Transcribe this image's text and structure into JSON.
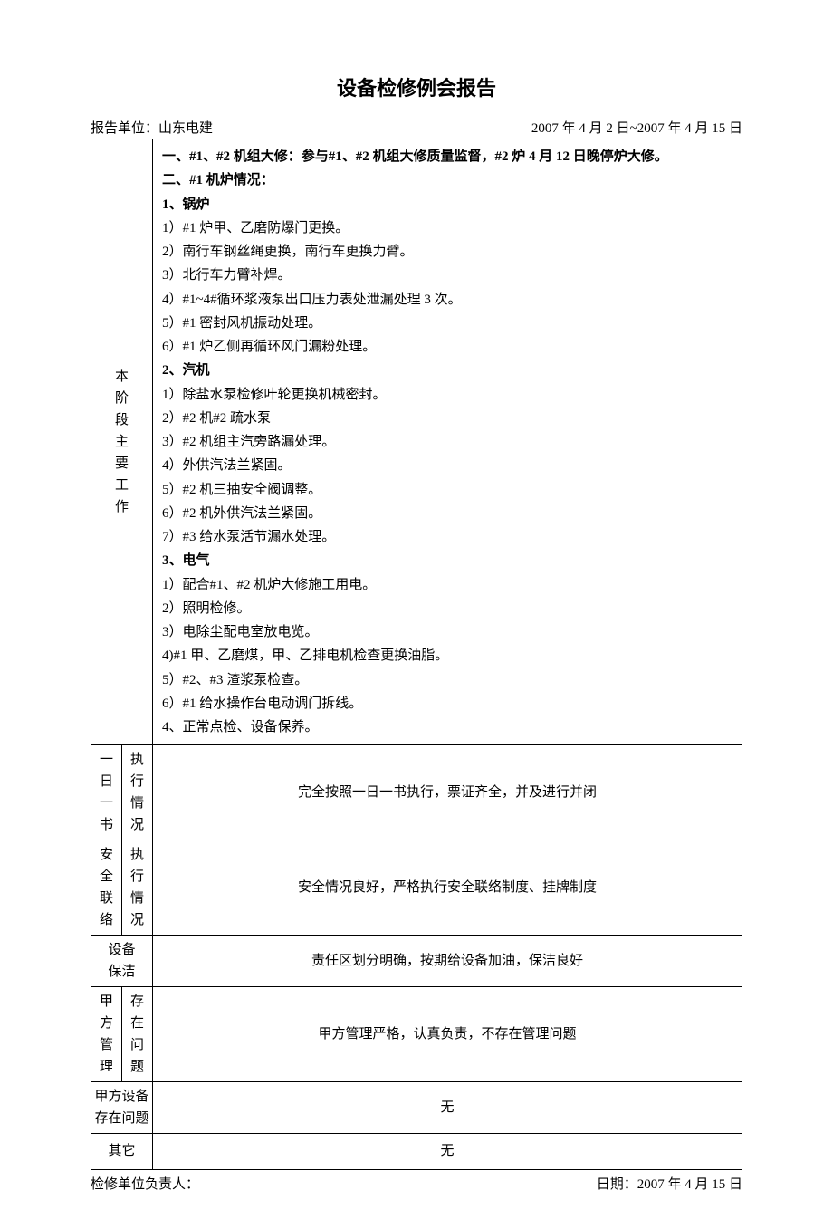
{
  "title": "设备检修例会报告",
  "header": {
    "unit_label": "报告单位：",
    "unit": "山东电建",
    "date_range": "2007 年 4 月 2 日~2007 年 4 月 15 日"
  },
  "main": {
    "row_label": "本阶段主要工作",
    "line1_bold": "一、#1、#2 机组大修：参与#1、#2 机组大修质量监督，#2 炉 4 月 12 日晚停炉大修。",
    "line2_bold": "二、#1 机炉情况：",
    "s1_head": "1、锅炉",
    "s1_1": "1）#1 炉甲、乙磨防爆门更换。",
    "s1_2": "2）南行车钢丝绳更换，南行车更换力臂。",
    "s1_3": "3）北行车力臂补焊。",
    "s1_4": "4）#1~4#循环浆液泵出口压力表处泄漏处理 3 次。",
    "s1_5": "5）#1 密封风机振动处理。",
    "s1_6": "6）#1 炉乙侧再循环风门漏粉处理。",
    "s2_head": "2、汽机",
    "s2_1": "1）除盐水泵检修叶轮更换机械密封。",
    "s2_2": "2）#2 机#2 疏水泵",
    "s2_3": "3）#2 机组主汽旁路漏处理。",
    "s2_4": "4）外供汽法兰紧固。",
    "s2_5": "5）#2 机三抽安全阀调整。",
    "s2_6": "6）#2 机外供汽法兰紧固。",
    "s2_7": "7）#3 给水泵活节漏水处理。",
    "s3_head": "3、电气",
    "s3_1": "1）配合#1、#2 机炉大修施工用电。",
    "s3_2": "2）照明检修。",
    "s3_3": "3）电除尘配电室放电览。",
    "s3_4": "4)#1 甲、乙磨煤，甲、乙排电机检查更换油脂。",
    "s3_5": "5）#2、#3 渣浆泵检查。",
    "s3_6": "6）#1 给水操作台电动调门拆线。",
    "s4": "4、正常点检、设备保养。"
  },
  "rows": {
    "r1_col1": "一日一书",
    "r1_col2": "执行情况",
    "r1_content": "完全按照一日一书执行，票证齐全，并及进行并闭",
    "r2_col1": "安全联络",
    "r2_col2": "执行情况",
    "r2_content": "安全情况良好，严格执行安全联络制度、挂牌制度",
    "r3_label": "设备保洁",
    "r3_content": "责任区划分明确，按期给设备加油，保洁良好",
    "r4_col1": "甲方管理",
    "r4_col2": "存在问题",
    "r4_content": "甲方管理严格，认真负责，不存在管理问题",
    "r5_label": "甲方设备存在问题",
    "r5_content": "无",
    "r6_label": "其它",
    "r6_content": "无"
  },
  "footer": {
    "left": "检修单位负责人：",
    "right": "日期：2007 年 4 月 15 日"
  }
}
